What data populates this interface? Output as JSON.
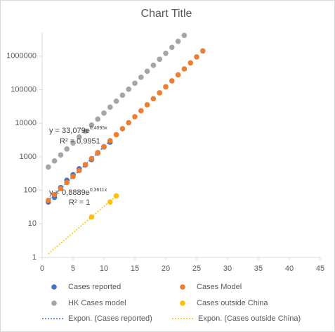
{
  "chart_data": {
    "type": "scatter",
    "title": "Chart Title",
    "log_y": true,
    "xlim": [
      0,
      45
    ],
    "xticks": [
      0,
      5,
      10,
      15,
      20,
      25,
      30,
      35,
      40,
      45
    ],
    "ylim": [
      1,
      5000000
    ],
    "yticks": [
      1,
      10,
      100,
      1000,
      10000,
      100000,
      1000000
    ],
    "series": [
      {
        "name": "Cases reported",
        "color": "#4472c4",
        "x": [
          1,
          2,
          3,
          4,
          5,
          6,
          7,
          8,
          9,
          10,
          11
        ],
        "values": [
          45,
          62,
          121,
          199,
          291,
          440,
          571,
          830,
          1287,
          1975,
          2744
        ]
      },
      {
        "name": "Cases Model",
        "color": "#ed7d31",
        "x": [
          1,
          2,
          3,
          4,
          5,
          6,
          7,
          8,
          9,
          10,
          11,
          12,
          13,
          14,
          15,
          16,
          17,
          18,
          19,
          20,
          21,
          22,
          23,
          24,
          25,
          26
        ],
        "values": [
          50,
          75,
          113,
          171,
          258,
          389,
          586,
          883,
          1332,
          2008,
          3027,
          4564,
          6880,
          10372,
          15637,
          23573,
          35540,
          53580,
          80770,
          121770,
          183580,
          276770,
          417250,
          629030,
          948320,
          1429670
        ]
      },
      {
        "name": "HK Cases model",
        "color": "#a5a5a5",
        "x": [
          1,
          2,
          3,
          4,
          5,
          6,
          7,
          8,
          9,
          10,
          11,
          12,
          13,
          14,
          15,
          16,
          17,
          18,
          19,
          20,
          21,
          22,
          23
        ],
        "values": [
          497,
          751,
          1132,
          1706,
          2572,
          3877,
          5846,
          8813,
          13287,
          20030,
          30198,
          45526,
          68633,
          103470,
          155990,
          235170,
          354530,
          534480,
          805770,
          1214770,
          1831370,
          2760960,
          4162380
        ]
      },
      {
        "name": "Cases outside China",
        "color": "#ffc000",
        "x": [
          8,
          11,
          12
        ],
        "values": [
          16,
          45,
          68
        ]
      }
    ],
    "trendlines": [
      {
        "name": "Expon. (Cases reported)",
        "color": "#4472c4",
        "x": [
          1,
          11
        ],
        "values": [
          50,
          3027
        ]
      },
      {
        "name": "Expon. (Cases outside China)",
        "color": "#ffc000",
        "x": [
          1,
          12
        ],
        "values": [
          1.28,
          68
        ]
      }
    ],
    "annotations": [
      {
        "base": "y = 33,079e",
        "exponent": "0,4095x",
        "r2": "R² = 0,9951"
      },
      {
        "base": "y = 0,8889e",
        "exponent": "0,3611x",
        "r2": "R² = 1"
      }
    ]
  }
}
